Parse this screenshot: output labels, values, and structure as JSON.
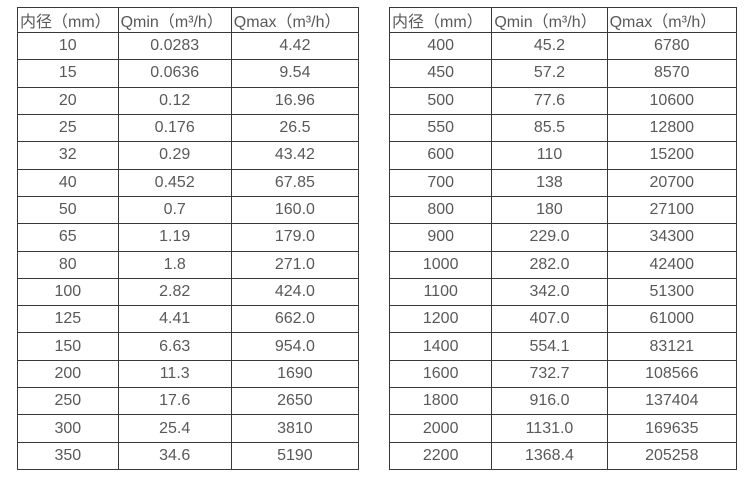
{
  "colors": {
    "background": "#ffffff",
    "text": "#595959",
    "border": "#383838"
  },
  "tables": [
    {
      "name": "flow-rate-table-small-diameters",
      "headers": [
        "内径（mm）",
        "Qmin（m³/h）",
        "Qmax（m³/h）"
      ],
      "rows": [
        [
          "10",
          "0.0283",
          "4.42"
        ],
        [
          "15",
          "0.0636",
          "9.54"
        ],
        [
          "20",
          "0.12",
          "16.96"
        ],
        [
          "25",
          "0.176",
          "26.5"
        ],
        [
          "32",
          "0.29",
          "43.42"
        ],
        [
          "40",
          "0.452",
          "67.85"
        ],
        [
          "50",
          "0.7",
          "160.0"
        ],
        [
          "65",
          "1.19",
          "179.0"
        ],
        [
          "80",
          "1.8",
          "271.0"
        ],
        [
          "100",
          "2.82",
          "424.0"
        ],
        [
          "125",
          "4.41",
          "662.0"
        ],
        [
          "150",
          "6.63",
          "954.0"
        ],
        [
          "200",
          "11.3",
          "1690"
        ],
        [
          "250",
          "17.6",
          "2650"
        ],
        [
          "300",
          "25.4",
          "3810"
        ],
        [
          "350",
          "34.6",
          "5190"
        ]
      ]
    },
    {
      "name": "flow-rate-table-large-diameters",
      "headers": [
        "内径（mm）",
        "Qmin（m³/h）",
        "Qmax（m³/h）"
      ],
      "rows": [
        [
          "400",
          "45.2",
          "6780"
        ],
        [
          "450",
          "57.2",
          "8570"
        ],
        [
          "500",
          "77.6",
          "10600"
        ],
        [
          "550",
          "85.5",
          "12800"
        ],
        [
          "600",
          "110",
          "15200"
        ],
        [
          "700",
          "138",
          "20700"
        ],
        [
          "800",
          "180",
          "27100"
        ],
        [
          "900",
          "229.0",
          "34300"
        ],
        [
          "1000",
          "282.0",
          "42400"
        ],
        [
          "1100",
          "342.0",
          "51300"
        ],
        [
          "1200",
          "407.0",
          "61000"
        ],
        [
          "1400",
          "554.1",
          "83121"
        ],
        [
          "1600",
          "732.7",
          "108566"
        ],
        [
          "1800",
          "916.0",
          "137404"
        ],
        [
          "2000",
          "1131.0",
          "169635"
        ],
        [
          "2200",
          "1368.4",
          "205258"
        ]
      ]
    }
  ]
}
